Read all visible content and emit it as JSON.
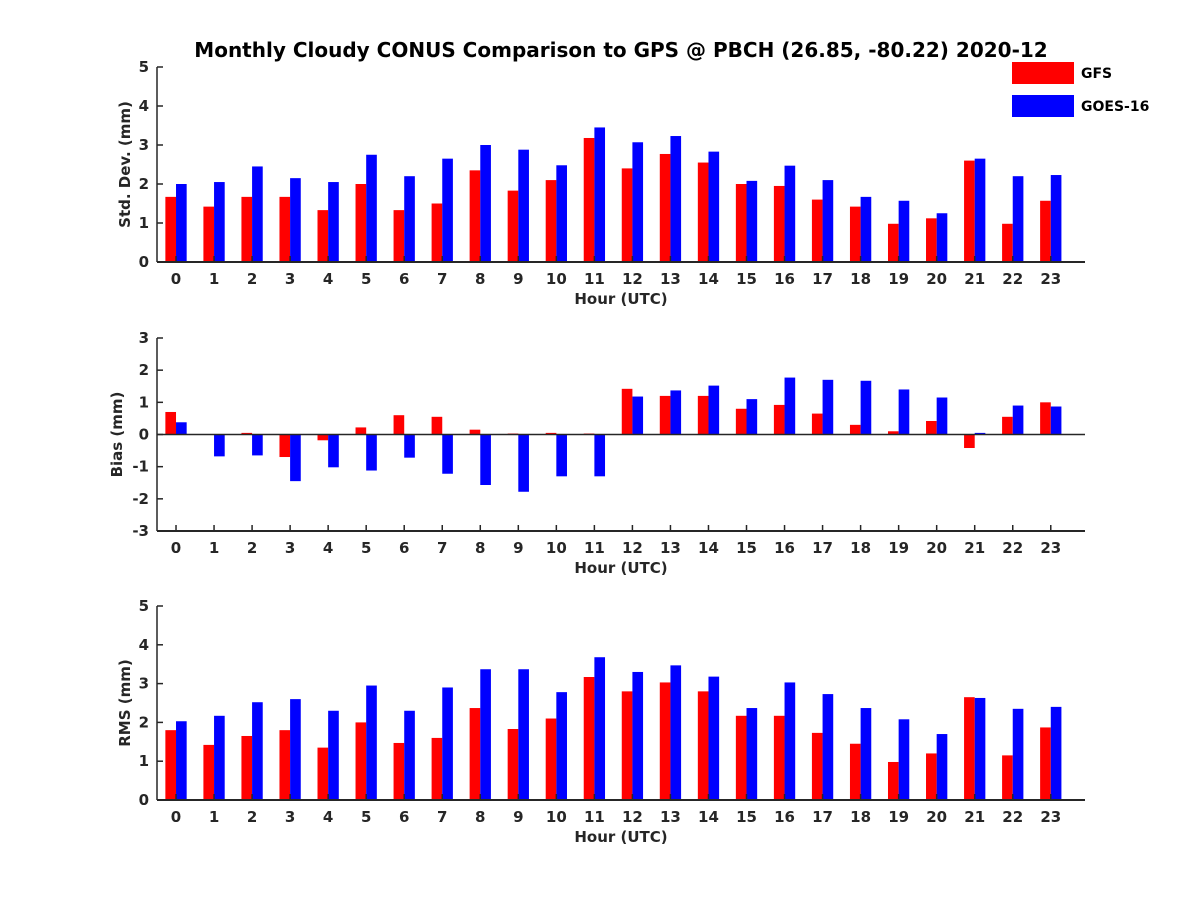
{
  "title": "Monthly Cloudy CONUS Comparison to GPS @ PBCH (26.85, -80.22) 2020-12",
  "legend": [
    {
      "name": "GFS",
      "color": "#ff0000"
    },
    {
      "name": "GOES-16",
      "color": "#0000ff"
    }
  ],
  "chart_data": [
    {
      "type": "bar",
      "title": "Monthly Cloudy CONUS Comparison to GPS @ PBCH (26.85, -80.22) 2020-12",
      "xlabel": "Hour (UTC)",
      "ylabel": "Std. Dev. (mm)",
      "ylim": [
        0,
        5
      ],
      "yticks": [
        0,
        1,
        2,
        3,
        4,
        5
      ],
      "categories": [
        "0",
        "1",
        "2",
        "3",
        "4",
        "5",
        "6",
        "7",
        "8",
        "9",
        "10",
        "11",
        "12",
        "13",
        "14",
        "15",
        "16",
        "17",
        "18",
        "19",
        "20",
        "21",
        "22",
        "23"
      ],
      "series": [
        {
          "name": "GFS",
          "color": "#ff0000",
          "values": [
            1.67,
            1.42,
            1.67,
            1.67,
            1.33,
            2.0,
            1.33,
            1.5,
            2.35,
            1.83,
            2.1,
            3.18,
            2.4,
            2.77,
            2.55,
            2.0,
            1.95,
            1.6,
            1.42,
            0.98,
            1.12,
            2.6,
            0.98,
            1.57
          ]
        },
        {
          "name": "GOES-16",
          "color": "#0000ff",
          "values": [
            2.0,
            2.05,
            2.45,
            2.15,
            2.05,
            2.75,
            2.2,
            2.65,
            3.0,
            2.88,
            2.48,
            3.45,
            3.07,
            3.23,
            2.83,
            2.08,
            2.47,
            2.1,
            1.67,
            1.57,
            1.25,
            2.65,
            2.2,
            2.23
          ]
        }
      ]
    },
    {
      "type": "bar",
      "xlabel": "Hour (UTC)",
      "ylabel": "Bias (mm)",
      "ylim": [
        -3,
        3
      ],
      "yticks": [
        -3,
        -2,
        -1,
        0,
        1,
        2,
        3
      ],
      "categories": [
        "0",
        "1",
        "2",
        "3",
        "4",
        "5",
        "6",
        "7",
        "8",
        "9",
        "10",
        "11",
        "12",
        "13",
        "14",
        "15",
        "16",
        "17",
        "18",
        "19",
        "20",
        "21",
        "22",
        "23"
      ],
      "series": [
        {
          "name": "GFS",
          "color": "#ff0000",
          "values": [
            0.7,
            0.0,
            0.05,
            -0.7,
            -0.18,
            0.22,
            0.6,
            0.55,
            0.15,
            0.03,
            0.05,
            0.03,
            1.42,
            1.2,
            1.2,
            0.8,
            0.92,
            0.65,
            0.3,
            0.1,
            0.42,
            -0.42,
            0.55,
            1.0
          ]
        },
        {
          "name": "GOES-16",
          "color": "#0000ff",
          "values": [
            0.38,
            -0.68,
            -0.65,
            -1.45,
            -1.02,
            -1.12,
            -0.72,
            -1.22,
            -1.57,
            -1.78,
            -1.3,
            -1.3,
            1.18,
            1.37,
            1.52,
            1.1,
            1.77,
            1.7,
            1.67,
            1.4,
            1.15,
            0.05,
            0.9,
            0.87
          ]
        }
      ]
    },
    {
      "type": "bar",
      "xlabel": "Hour (UTC)",
      "ylabel": "RMS (mm)",
      "ylim": [
        0,
        5
      ],
      "yticks": [
        0,
        1,
        2,
        3,
        4,
        5
      ],
      "categories": [
        "0",
        "1",
        "2",
        "3",
        "4",
        "5",
        "6",
        "7",
        "8",
        "9",
        "10",
        "11",
        "12",
        "13",
        "14",
        "15",
        "16",
        "17",
        "18",
        "19",
        "20",
        "21",
        "22",
        "23"
      ],
      "series": [
        {
          "name": "GFS",
          "color": "#ff0000",
          "values": [
            1.8,
            1.42,
            1.65,
            1.8,
            1.35,
            2.0,
            1.47,
            1.6,
            2.37,
            1.83,
            2.1,
            3.17,
            2.8,
            3.03,
            2.8,
            2.17,
            2.17,
            1.73,
            1.45,
            0.98,
            1.2,
            2.65,
            1.15,
            1.87
          ]
        },
        {
          "name": "GOES-16",
          "color": "#0000ff",
          "values": [
            2.03,
            2.17,
            2.52,
            2.6,
            2.3,
            2.95,
            2.3,
            2.9,
            3.37,
            3.37,
            2.78,
            3.68,
            3.3,
            3.47,
            3.18,
            2.37,
            3.03,
            2.73,
            2.37,
            2.08,
            1.7,
            2.63,
            2.35,
            2.4
          ]
        }
      ]
    }
  ]
}
